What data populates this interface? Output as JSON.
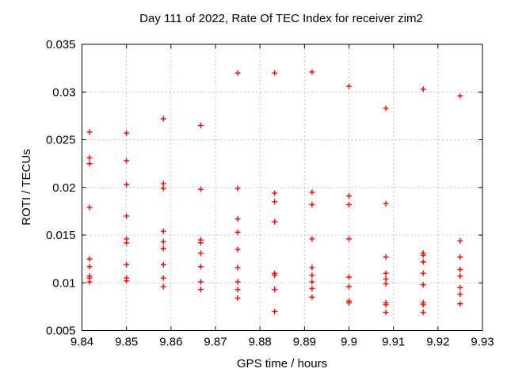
{
  "chart_data": {
    "type": "scatter",
    "title": "Day 111 of 2022, Rate Of TEC Index for receiver zim2",
    "xlabel": "GPS time / hours",
    "ylabel": "ROTI / TECUs",
    "xlim": [
      9.84,
      9.93
    ],
    "ylim": [
      0.005,
      0.035
    ],
    "xticks": {
      "values": [
        9.84,
        9.85,
        9.86,
        9.87,
        9.88,
        9.89,
        9.9,
        9.91,
        9.92,
        9.93
      ],
      "labels": [
        "9.84",
        "9.85",
        "9.86",
        "9.87",
        "9.88",
        "9.89",
        "9.9",
        "9.91",
        "9.92",
        "9.93"
      ]
    },
    "yticks": {
      "values": [
        0.005,
        0.01,
        0.015,
        0.02,
        0.025,
        0.03,
        0.035
      ],
      "labels": [
        "0.005",
        "0.01",
        "0.015",
        "0.02",
        "0.025",
        "0.03",
        "0.035"
      ]
    },
    "grid": true,
    "legend_position": "none",
    "marker": "plus",
    "marker_color": "#ff0000",
    "grid_color": "#bdbdbd",
    "axis_color": "#000000",
    "series": [
      {
        "name": "ROTI",
        "points": [
          [
            9.8417,
            0.0258
          ],
          [
            9.8417,
            0.0231
          ],
          [
            9.8417,
            0.0225
          ],
          [
            9.8417,
            0.0179
          ],
          [
            9.8417,
            0.0125
          ],
          [
            9.8417,
            0.0117
          ],
          [
            9.8417,
            0.0107
          ],
          [
            9.8417,
            0.0105
          ],
          [
            9.8417,
            0.0101
          ],
          [
            9.85,
            0.0257
          ],
          [
            9.85,
            0.0228
          ],
          [
            9.85,
            0.0203
          ],
          [
            9.85,
            0.017
          ],
          [
            9.85,
            0.0146
          ],
          [
            9.85,
            0.0142
          ],
          [
            9.85,
            0.0119
          ],
          [
            9.85,
            0.0105
          ],
          [
            9.85,
            0.0102
          ],
          [
            9.8583,
            0.0272
          ],
          [
            9.8583,
            0.0204
          ],
          [
            9.8583,
            0.0199
          ],
          [
            9.8583,
            0.0154
          ],
          [
            9.8583,
            0.0143
          ],
          [
            9.8583,
            0.0136
          ],
          [
            9.8583,
            0.0119
          ],
          [
            9.8583,
            0.0105
          ],
          [
            9.8583,
            0.0096
          ],
          [
            9.8667,
            0.0265
          ],
          [
            9.8667,
            0.0198
          ],
          [
            9.8667,
            0.0145
          ],
          [
            9.8667,
            0.0142
          ],
          [
            9.8667,
            0.0131
          ],
          [
            9.8667,
            0.0117
          ],
          [
            9.8667,
            0.0101
          ],
          [
            9.8667,
            0.0093
          ],
          [
            9.875,
            0.032
          ],
          [
            9.875,
            0.0199
          ],
          [
            9.875,
            0.0167
          ],
          [
            9.875,
            0.0153
          ],
          [
            9.875,
            0.0135
          ],
          [
            9.875,
            0.0116
          ],
          [
            9.875,
            0.0101
          ],
          [
            9.875,
            0.0093
          ],
          [
            9.875,
            0.0084
          ],
          [
            9.8833,
            0.032
          ],
          [
            9.8833,
            0.0194
          ],
          [
            9.8833,
            0.0185
          ],
          [
            9.8833,
            0.0164
          ],
          [
            9.8833,
            0.011
          ],
          [
            9.8833,
            0.0108
          ],
          [
            9.8833,
            0.0093
          ],
          [
            9.8833,
            0.007
          ],
          [
            9.8917,
            0.0321
          ],
          [
            9.8917,
            0.0195
          ],
          [
            9.8917,
            0.0182
          ],
          [
            9.8917,
            0.0146
          ],
          [
            9.8917,
            0.0116
          ],
          [
            9.8917,
            0.0108
          ],
          [
            9.8917,
            0.0101
          ],
          [
            9.8917,
            0.0094
          ],
          [
            9.8917,
            0.0085
          ],
          [
            9.9,
            0.0306
          ],
          [
            9.9,
            0.0191
          ],
          [
            9.9,
            0.0182
          ],
          [
            9.9,
            0.0146
          ],
          [
            9.9,
            0.0106
          ],
          [
            9.9,
            0.0096
          ],
          [
            9.9,
            0.0081
          ],
          [
            9.9,
            0.0079
          ],
          [
            9.9083,
            0.0283
          ],
          [
            9.9083,
            0.0183
          ],
          [
            9.9083,
            0.0127
          ],
          [
            9.9083,
            0.011
          ],
          [
            9.9083,
            0.0104
          ],
          [
            9.9083,
            0.0099
          ],
          [
            9.9083,
            0.0079
          ],
          [
            9.9083,
            0.0077
          ],
          [
            9.9083,
            0.0069
          ],
          [
            9.9167,
            0.0303
          ],
          [
            9.9167,
            0.0131
          ],
          [
            9.9167,
            0.0129
          ],
          [
            9.9167,
            0.0122
          ],
          [
            9.9167,
            0.011
          ],
          [
            9.9167,
            0.0098
          ],
          [
            9.9167,
            0.0079
          ],
          [
            9.9167,
            0.0077
          ],
          [
            9.9167,
            0.0069
          ],
          [
            9.925,
            0.0296
          ],
          [
            9.925,
            0.0144
          ],
          [
            9.925,
            0.0127
          ],
          [
            9.925,
            0.0114
          ],
          [
            9.925,
            0.0107
          ],
          [
            9.925,
            0.0095
          ],
          [
            9.925,
            0.0088
          ],
          [
            9.925,
            0.0078
          ]
        ]
      }
    ]
  }
}
